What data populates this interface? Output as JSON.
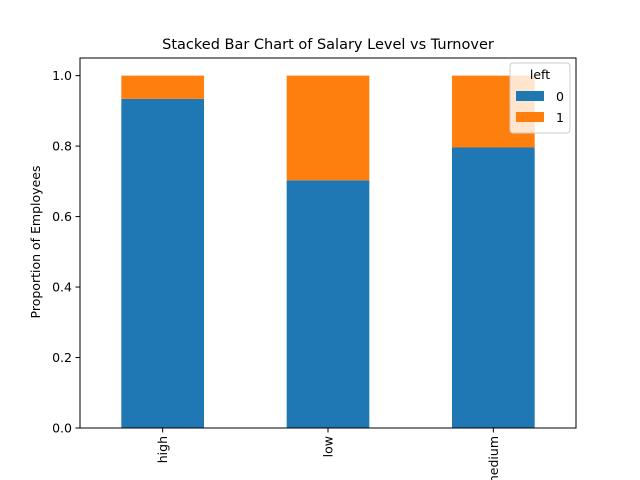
{
  "chart_data": {
    "type": "bar",
    "stacked": true,
    "title": "Stacked Bar Chart of Salary Level vs Turnover",
    "xlabel": "",
    "ylabel": "Proportion of Employees",
    "categories": [
      "high",
      "low",
      "medium"
    ],
    "series": [
      {
        "name": "0",
        "values": [
          0.934,
          0.703,
          0.796
        ],
        "color": "#1f77b4"
      },
      {
        "name": "1",
        "values": [
          0.066,
          0.297,
          0.204
        ],
        "color": "#ff7f0e"
      }
    ],
    "ylim": [
      0,
      1.05
    ],
    "yticks": [
      "0.0",
      "0.2",
      "0.4",
      "0.6",
      "0.8",
      "1.0"
    ],
    "grid": false,
    "legend": {
      "title": "left",
      "placement": "top-right"
    }
  }
}
